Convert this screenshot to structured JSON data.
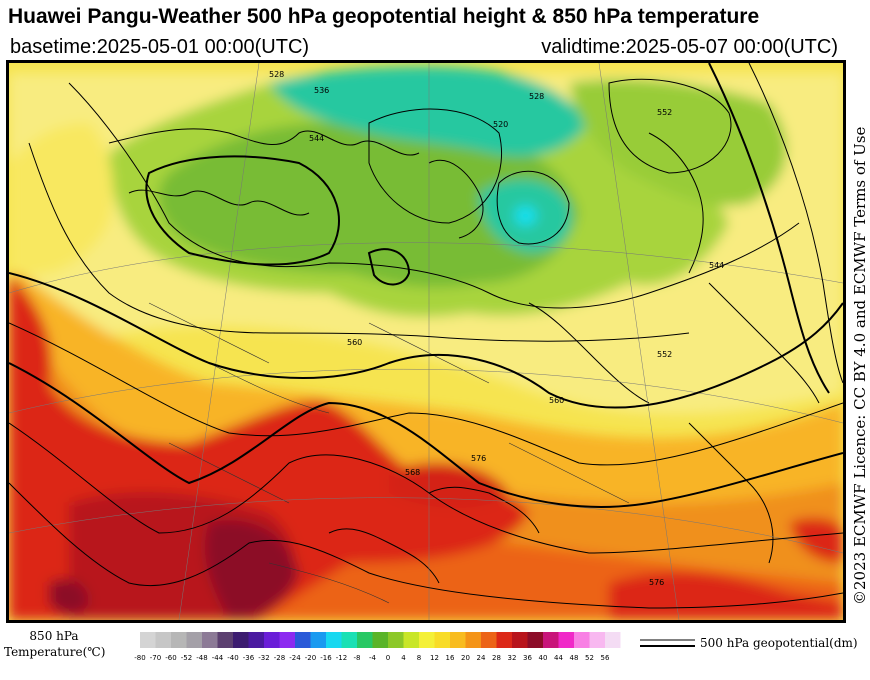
{
  "header": {
    "title": "Huawei Pangu-Weather 500 hPa geopotential height & 850 hPa temperature",
    "basetime": "basetime:2025-05-01 00:00(UTC)",
    "validtime": "validtime:2025-05-07 00:00(UTC)"
  },
  "license": "©2023 ECMWF Licence: CC BY 4.0 and ECMWF Terms of Use",
  "legend": {
    "label_line1": "850 hPa",
    "label_line2": "Temperature(℃)",
    "ticks": [
      "-80",
      "-70",
      "-60",
      "-52",
      "-48",
      "-44",
      "-40",
      "-36",
      "-32",
      "-28",
      "-24",
      "-20",
      "-16",
      "-12",
      "-8",
      "-4",
      "0",
      "4",
      "8",
      "12",
      "16",
      "20",
      "24",
      "28",
      "32",
      "36",
      "40",
      "44",
      "48",
      "52",
      "56"
    ],
    "colors": [
      "#d4d4d4",
      "#c6c6c6",
      "#b6b6b6",
      "#a4a0a8",
      "#8c7a96",
      "#5c4070",
      "#3c1c70",
      "#4a1aa0",
      "#6a1ed8",
      "#8c2af0",
      "#2a5ad8",
      "#1a9af0",
      "#18d8f0",
      "#1ae0b4",
      "#28c864",
      "#5ab428",
      "#8cc828",
      "#c8e628",
      "#f4f038",
      "#f8dc28",
      "#f8bc20",
      "#f49418",
      "#ec6418",
      "#dc2818",
      "#b8141c",
      "#8c0c28",
      "#c8147a",
      "#f028c8",
      "#f880e4",
      "#f8b8f0",
      "#f4dcf4"
    ],
    "contour_label": "500 hPa geopotential(dm)"
  },
  "map": {
    "contour_labels": [
      "544",
      "552",
      "560",
      "576",
      "536",
      "528",
      "520",
      "544",
      "552",
      "560",
      "568",
      "576",
      "528"
    ]
  }
}
